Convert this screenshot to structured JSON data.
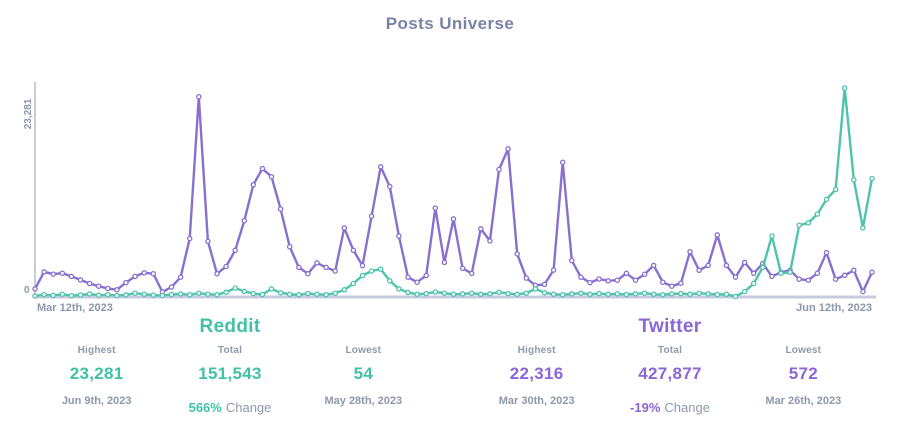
{
  "title": "Posts Universe",
  "colors": {
    "reddit": "#4ec4ab",
    "twitter": "#8771d0",
    "axis": "#c9cbdd",
    "marker_fill": "#ffffff"
  },
  "chart_data": {
    "type": "line",
    "title": "Posts Universe",
    "x_start_label": "Mar 12th, 2023",
    "x_end_label": "Jun 12th, 2023",
    "y_max": 23281,
    "y_max_label": "23,281",
    "y_min_label": "0",
    "grid": false,
    "legend_position": "none",
    "series": [
      {
        "name": "Reddit",
        "color": "#4ec4ab",
        "values": [
          120,
          260,
          180,
          310,
          150,
          220,
          340,
          190,
          260,
          160,
          230,
          420,
          300,
          210,
          160,
          280,
          350,
          240,
          420,
          310,
          260,
          540,
          990,
          620,
          380,
          280,
          900,
          480,
          300,
          240,
          380,
          300,
          260,
          420,
          800,
          1500,
          2400,
          2900,
          3100,
          1800,
          900,
          500,
          300,
          380,
          560,
          420,
          300,
          340,
          420,
          300,
          360,
          540,
          380,
          300,
          420,
          900,
          480,
          300,
          260,
          340,
          420,
          300,
          380,
          300,
          340,
          280,
          360,
          420,
          300,
          260,
          340,
          380,
          300,
          420,
          340,
          280,
          300,
          54,
          600,
          1500,
          3300,
          6800,
          2640,
          2750,
          8000,
          8250,
          9230,
          10870,
          11970,
          23281,
          13070,
          7700,
          13200
        ]
      },
      {
        "name": "Twitter",
        "color": "#8771d0",
        "values": [
          900,
          2800,
          2550,
          2650,
          2300,
          1900,
          1500,
          1200,
          950,
          800,
          1600,
          2300,
          2700,
          2600,
          572,
          1100,
          2200,
          6500,
          22316,
          6200,
          2600,
          3400,
          5200,
          8500,
          12500,
          14300,
          13400,
          9800,
          5600,
          3300,
          2600,
          3800,
          3300,
          2900,
          7700,
          5200,
          3500,
          9000,
          14500,
          12300,
          6800,
          2200,
          1650,
          2400,
          9900,
          3850,
          8700,
          3200,
          2630,
          7600,
          6250,
          14200,
          16500,
          4800,
          2100,
          1300,
          1400,
          3000,
          15000,
          4050,
          2200,
          1600,
          2000,
          1800,
          1870,
          2640,
          1870,
          2530,
          3520,
          1650,
          1200,
          1540,
          5050,
          2970,
          3520,
          6920,
          3520,
          2200,
          3850,
          2640,
          3740,
          2300,
          2750,
          2970,
          1980,
          1870,
          2640,
          4950,
          1980,
          2420,
          2970,
          600,
          2750
        ]
      }
    ]
  },
  "stats": [
    {
      "name": "Reddit",
      "highest": {
        "label": "Highest",
        "value": "23,281",
        "date": "Jun 9th, 2023"
      },
      "total": {
        "label": "Total",
        "value": "151,543",
        "change_value": "566%",
        "change_label": "Change"
      },
      "lowest": {
        "label": "Lowest",
        "value": "54",
        "date": "May 28th, 2023"
      }
    },
    {
      "name": "Twitter",
      "highest": {
        "label": "Highest",
        "value": "22,316",
        "date": "Mar 30th, 2023"
      },
      "total": {
        "label": "Total",
        "value": "427,877",
        "change_value": "-19%",
        "change_label": "Change"
      },
      "lowest": {
        "label": "Lowest",
        "value": "572",
        "date": "Mar 26th, 2023"
      }
    }
  ]
}
